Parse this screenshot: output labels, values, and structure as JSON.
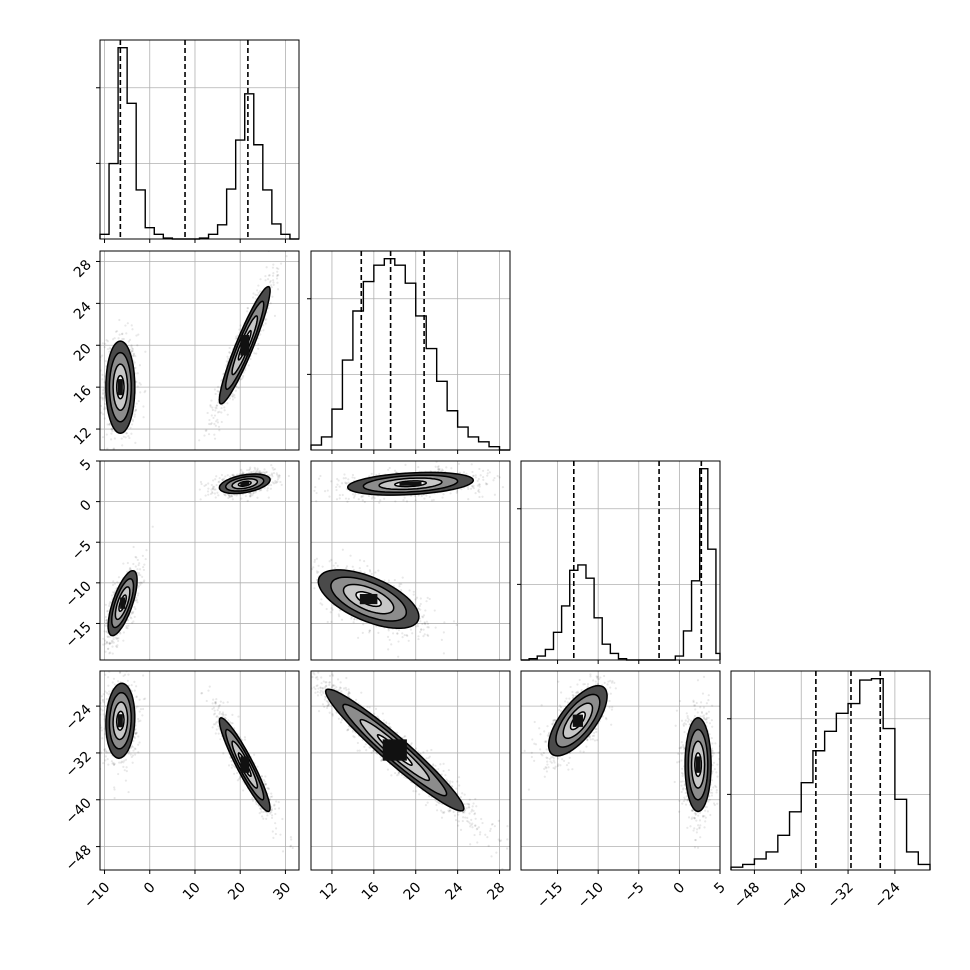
{
  "chart_data": {
    "type": "corner",
    "variables": [
      {
        "name": "",
        "range": [
          -11,
          33
        ],
        "ticks": [
          -10,
          0,
          10,
          20,
          30
        ],
        "tick_labels": [
          "−10",
          "0",
          "10",
          "20",
          "30"
        ],
        "quantiles": [
          -6.5,
          7.8,
          21.7
        ],
        "bimodal": true,
        "hist": {
          "bin_edges": [
            -11,
            -9,
            -7,
            -5,
            -3,
            -1,
            1,
            3,
            5,
            7,
            9,
            11,
            13,
            15,
            17,
            19,
            21,
            23,
            25,
            27,
            29,
            31,
            33
          ],
          "counts": [
            0.5,
            8,
            20.3,
            14.4,
            5.2,
            1.2,
            0.5,
            0.1,
            0,
            0,
            0,
            0.1,
            0.5,
            1.5,
            5.3,
            10.5,
            15.4,
            10,
            5.2,
            1.6,
            0.5,
            0
          ]
        }
      },
      {
        "name": "",
        "range": [
          10,
          29
        ],
        "ticks": [
          12,
          16,
          20,
          24,
          28
        ],
        "tick_labels": [
          "12",
          "16",
          "20",
          "24",
          "28"
        ],
        "quantiles": [
          14.8,
          17.6,
          20.8
        ],
        "bimodal": false,
        "hist": {
          "bin_edges": [
            10,
            11,
            12,
            13,
            14,
            15,
            16,
            17,
            18,
            19,
            20,
            21,
            22,
            23,
            24,
            25,
            26,
            27,
            28,
            29
          ],
          "counts": [
            0.3,
            0.8,
            2.5,
            5.5,
            8.5,
            10.3,
            11.3,
            11.7,
            11.3,
            10.2,
            8.2,
            6.2,
            4.2,
            2.4,
            1.4,
            0.8,
            0.5,
            0.2,
            0
          ]
        }
      },
      {
        "name": "",
        "range": [
          -19.5,
          5
        ],
        "ticks": [
          -15,
          -10,
          -5,
          0,
          5
        ],
        "tick_labels": [
          "−15",
          "−10",
          "−5",
          "0",
          "5"
        ],
        "quantiles": [
          -13,
          -2.5,
          2.7
        ],
        "bimodal": true,
        "hist": {
          "bin_edges": [
            -19.5,
            -18.5,
            -17.5,
            -16.5,
            -15.5,
            -14.5,
            -13.5,
            -12.5,
            -11.5,
            -10.5,
            -9.5,
            -8.5,
            -7.5,
            -6.5,
            -5.5,
            -4.5,
            -3.5,
            -2.5,
            -1.5,
            -0.5,
            0.5,
            1.5,
            2.5,
            3.5,
            4.5,
            5
          ],
          "counts": [
            0,
            0.1,
            0.3,
            0.8,
            2.1,
            4.1,
            6.8,
            7.2,
            6.2,
            3.2,
            1.2,
            0.5,
            0.1,
            0,
            0,
            0,
            0,
            0,
            0,
            0.3,
            2.2,
            6,
            14.5,
            8.4,
            0.5
          ]
        }
      },
      {
        "name": "",
        "range": [
          -52,
          -18
        ],
        "ticks": [
          -48,
          -40,
          -32,
          -24
        ],
        "tick_labels": [
          "−48",
          "−40",
          "−32",
          "−24"
        ],
        "quantiles": [
          -37.5,
          -31.5,
          -26.5
        ],
        "bimodal": false,
        "hist": {
          "bin_edges": [
            -52,
            -50,
            -48,
            -46,
            -44,
            -42,
            -40,
            -38,
            -36,
            -34,
            -32,
            -30,
            -28,
            -26,
            -24,
            -22,
            -20,
            -18
          ],
          "counts": [
            0.2,
            0.4,
            0.8,
            1.3,
            2.5,
            4.2,
            6.3,
            8.6,
            10,
            11.3,
            12,
            13.7,
            13.8,
            10.2,
            5.1,
            1.3,
            0.4
          ]
        }
      }
    ],
    "pairs": [
      {
        "x_var": 0,
        "y_var": 1,
        "clusters": [
          {
            "cx": -6.5,
            "cy": 16,
            "sx": 1.6,
            "sy": 2.2,
            "rho": 0.0,
            "weight": 0.45
          },
          {
            "cx": 21,
            "cy": 20,
            "sx": 2.8,
            "sy": 2.8,
            "rho": 0.93,
            "weight": 0.55
          }
        ]
      },
      {
        "x_var": 0,
        "y_var": 2,
        "clusters": [
          {
            "cx": -6,
            "cy": -12.5,
            "sx": 1.6,
            "sy": 2.0,
            "rho": 0.7,
            "weight": 0.45
          },
          {
            "cx": 21,
            "cy": 2.2,
            "sx": 2.8,
            "sy": 0.6,
            "rho": 0.4,
            "weight": 0.55
          }
        ]
      },
      {
        "x_var": 1,
        "y_var": 2,
        "clusters": [
          {
            "cx": 15.5,
            "cy": -12,
            "sx": 2.4,
            "sy": 1.8,
            "rho": -0.6,
            "weight": 0.45
          },
          {
            "cx": 19.5,
            "cy": 2.2,
            "sx": 3.0,
            "sy": 0.7,
            "rho": 0.3,
            "weight": 0.55
          }
        ]
      },
      {
        "x_var": 0,
        "y_var": 3,
        "clusters": [
          {
            "cx": -6.5,
            "cy": -26.5,
            "sx": 1.6,
            "sy": 3.2,
            "rho": 0.1,
            "weight": 0.45
          },
          {
            "cx": 21,
            "cy": -34,
            "sx": 2.8,
            "sy": 4.0,
            "rho": -0.93,
            "weight": 0.55
          }
        ]
      },
      {
        "x_var": 1,
        "y_var": 3,
        "clusters": [
          {
            "cx": 18,
            "cy": -31.5,
            "sx": 3.3,
            "sy": 5.2,
            "rho": -0.96,
            "weight": 1.0
          }
        ]
      },
      {
        "x_var": 2,
        "y_var": 3,
        "clusters": [
          {
            "cx": -12.5,
            "cy": -26.5,
            "sx": 1.8,
            "sy": 3.0,
            "rho": 0.7,
            "weight": 0.45
          },
          {
            "cx": 2.3,
            "cy": -34,
            "sx": 0.8,
            "sy": 4.0,
            "rho": 0.0,
            "weight": 0.55
          }
        ]
      }
    ],
    "hist_y_ticks_fraction": [
      0.38,
      0.76
    ],
    "grid": true,
    "contour_levels": [
      0.5,
      1.0,
      1.5,
      2.0
    ]
  }
}
